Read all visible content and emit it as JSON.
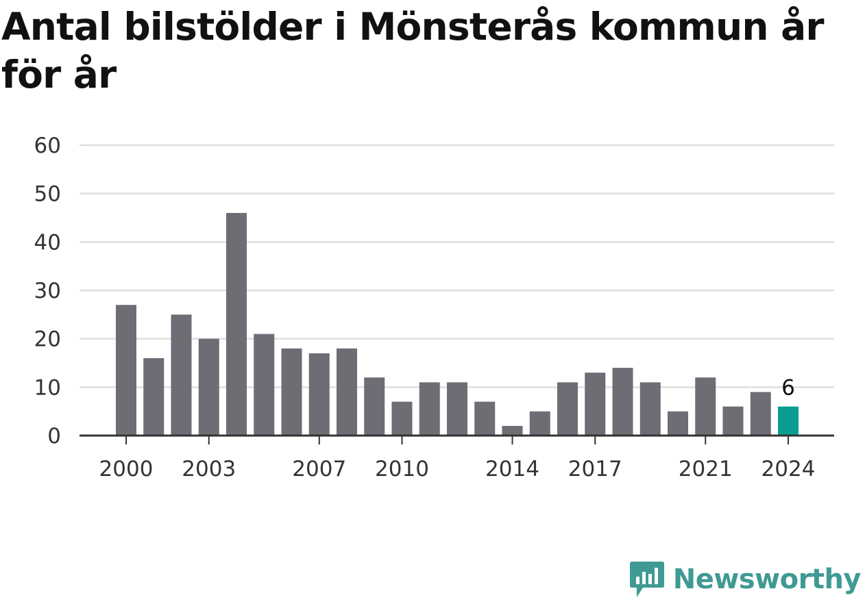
{
  "title": "Antal bilstölder i Mönsterås kommun år för år",
  "brand": {
    "name": "Newsworthy",
    "icon": "newsworthy-logo-icon",
    "color": "#3f9a93"
  },
  "colors": {
    "bar": "#6e6d74",
    "highlight": "#0a9c91",
    "grid": "#dedede",
    "axis": "#333333",
    "tick_label": "#333333"
  },
  "chart_data": {
    "type": "bar",
    "title": "Antal bilstölder i Mönsterås kommun år för år",
    "xlabel": "",
    "ylabel": "",
    "categories": [
      2000,
      2001,
      2002,
      2003,
      2004,
      2005,
      2006,
      2007,
      2008,
      2009,
      2010,
      2011,
      2012,
      2013,
      2014,
      2015,
      2016,
      2017,
      2018,
      2019,
      2020,
      2021,
      2022,
      2023,
      2024
    ],
    "values": [
      27,
      16,
      25,
      20,
      46,
      21,
      18,
      17,
      18,
      12,
      7,
      11,
      11,
      7,
      2,
      5,
      11,
      13,
      14,
      11,
      5,
      12,
      6,
      9,
      6
    ],
    "ylim": [
      0,
      60
    ],
    "yticks": [
      0,
      10,
      20,
      30,
      40,
      50,
      60
    ],
    "xtick_labels": [
      "2000",
      "2003",
      "2007",
      "2010",
      "2014",
      "2017",
      "2021",
      "2024"
    ],
    "highlight": {
      "category": 2024,
      "value": 6,
      "label": "6"
    },
    "grid": true,
    "legend": "none"
  }
}
